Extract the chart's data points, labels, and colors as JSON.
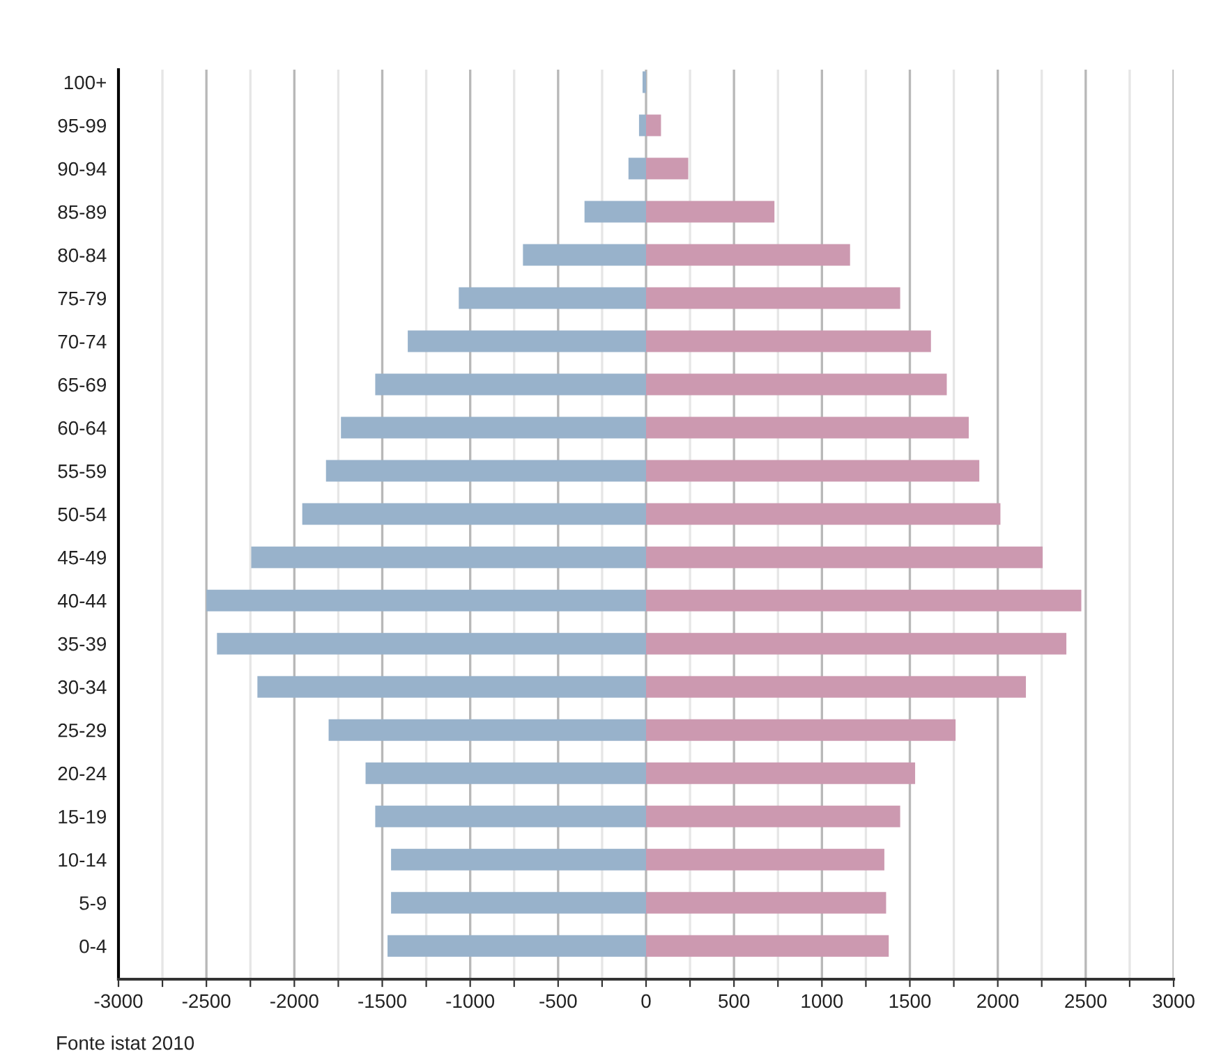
{
  "chart_data": {
    "type": "bar",
    "orientation": "horizontal",
    "stacked": true,
    "categories": [
      "100+",
      "95-99",
      "90-94",
      "85-89",
      "80-84",
      "75-79",
      "70-74",
      "65-69",
      "60-64",
      "55-59",
      "50-54",
      "45-49",
      "40-44",
      "35-39",
      "30-34",
      "25-29",
      "20-24",
      "15-19",
      "10-14",
      "5-9",
      "0-4"
    ],
    "series": [
      {
        "color": "#98b2cb",
        "values": [
          -20,
          -40,
          -100,
          -350,
          -700,
          -1065,
          -1355,
          -1540,
          -1735,
          -1820,
          -1955,
          -2245,
          -2500,
          -2440,
          -2210,
          -1805,
          -1595,
          -1540,
          -1450,
          -1450,
          -1470
        ]
      },
      {
        "color": "#cc99b0",
        "values": [
          0,
          85,
          240,
          730,
          1160,
          1445,
          1620,
          1710,
          1835,
          1895,
          2015,
          2255,
          2475,
          2390,
          2160,
          1760,
          1530,
          1445,
          1355,
          1365,
          1380
        ]
      }
    ],
    "xlim": [
      -3000,
      3000
    ],
    "xticks": [
      -3000,
      {
        "value": -2750,
        "label": null
      },
      -2500,
      {
        "value": -2250,
        "label": null
      },
      -2000,
      {
        "value": -1750,
        "label": null
      },
      -1500,
      {
        "value": -1250,
        "label": null
      },
      -1000,
      {
        "value": -750,
        "label": null
      },
      -500,
      {
        "value": -250,
        "label": null
      },
      0,
      {
        "value": 250,
        "label": null
      },
      500,
      {
        "value": 750,
        "label": null
      },
      1000,
      {
        "value": 1250,
        "label": null
      },
      1500,
      {
        "value": 1750,
        "label": null
      },
      2000,
      {
        "value": 2250,
        "label": null
      },
      2500,
      {
        "value": 2750,
        "label": null
      },
      3000
    ],
    "grid": "x",
    "annotations": [
      "Fonte istat 2010"
    ]
  }
}
